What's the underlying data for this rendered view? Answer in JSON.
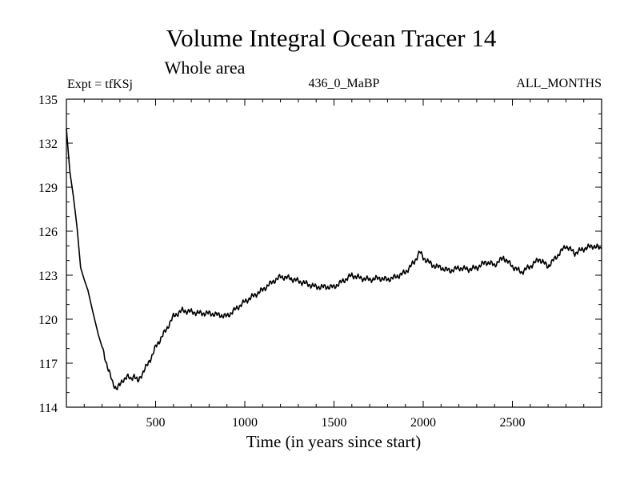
{
  "chart_data": {
    "type": "line",
    "title": "Volume Integral Ocean Tracer 14",
    "subtitle": "Whole area",
    "left_label": "Expt = tfKSj",
    "center_label": "436_0_MaBP",
    "right_label": "ALL_MONTHS",
    "xlabel": "Time (in years since start)",
    "ylabel": "",
    "xlim": [
      0,
      3000
    ],
    "ylim": [
      114,
      135
    ],
    "x_ticks": [
      500,
      1000,
      1500,
      2000,
      2500
    ],
    "x_tick_labels": [
      "500",
      "1000",
      "1500",
      "2000",
      "2500"
    ],
    "y_ticks": [
      114,
      117,
      120,
      123,
      126,
      129,
      132,
      135
    ],
    "y_tick_labels": [
      "114",
      "117",
      "120",
      "123",
      "126",
      "129",
      "132",
      "135"
    ],
    "grid": false,
    "line_color": "#000000",
    "series": [
      {
        "name": "Tracer 14",
        "x": [
          0,
          20,
          40,
          60,
          80,
          100,
          120,
          150,
          180,
          200,
          220,
          240,
          260,
          280,
          300,
          320,
          340,
          360,
          380,
          400,
          420,
          450,
          480,
          500,
          530,
          560,
          600,
          650,
          700,
          750,
          800,
          850,
          900,
          950,
          1000,
          1050,
          1100,
          1150,
          1200,
          1250,
          1300,
          1350,
          1400,
          1450,
          1500,
          1550,
          1600,
          1650,
          1700,
          1750,
          1800,
          1850,
          1900,
          1950,
          1980,
          2000,
          2050,
          2100,
          2150,
          2200,
          2250,
          2300,
          2350,
          2400,
          2450,
          2500,
          2550,
          2600,
          2650,
          2700,
          2750,
          2800,
          2850,
          2900,
          2950,
          3000
        ],
        "y": [
          133.0,
          130.0,
          128.3,
          126.2,
          123.5,
          122.7,
          122.0,
          120.4,
          118.9,
          118.1,
          117.2,
          116.4,
          115.6,
          115.3,
          115.5,
          115.9,
          116.1,
          115.9,
          116.2,
          115.7,
          116.2,
          116.8,
          117.5,
          118.1,
          118.7,
          119.3,
          120.2,
          120.6,
          120.5,
          120.4,
          120.4,
          120.3,
          120.2,
          120.7,
          121.2,
          121.6,
          122.0,
          122.5,
          122.9,
          122.8,
          122.6,
          122.4,
          122.2,
          122.2,
          122.2,
          122.6,
          123.0,
          122.8,
          122.7,
          122.8,
          122.7,
          122.9,
          123.2,
          123.9,
          124.6,
          124.2,
          123.7,
          123.5,
          123.3,
          123.5,
          123.4,
          123.5,
          123.9,
          123.7,
          124.2,
          123.6,
          123.2,
          123.6,
          124.1,
          123.6,
          124.3,
          125.0,
          124.5,
          124.8,
          125.0,
          124.8
        ]
      }
    ]
  }
}
